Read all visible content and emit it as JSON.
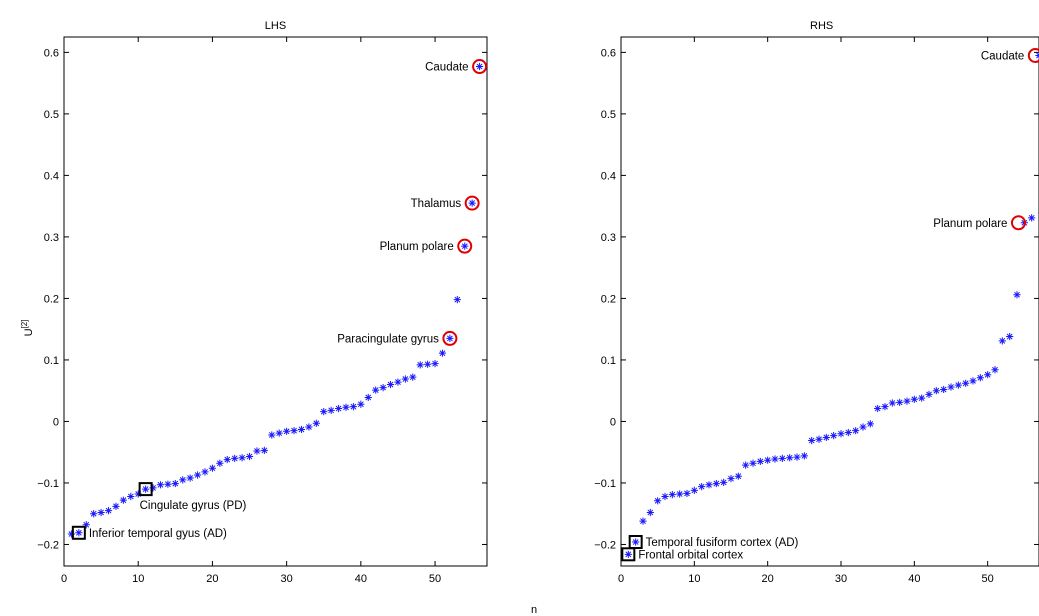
{
  "chart_data": [
    {
      "type": "scatter",
      "title": "LHS",
      "xlabel": "",
      "ylabel": "U",
      "ylabel_sup": "[2]",
      "xlim": [
        0,
        57
      ],
      "ylim": [
        -0.235,
        0.625
      ],
      "xticks": [
        "0",
        "10",
        "20",
        "30",
        "40",
        "50"
      ],
      "yticks": [
        "−0.2",
        "−0.1",
        "0",
        "0.1",
        "0.2",
        "0.3",
        "0.4",
        "0.5",
        "0.6"
      ],
      "xtick_values": [
        0,
        10,
        20,
        30,
        40,
        50
      ],
      "ytick_values": [
        -0.2,
        -0.1,
        0,
        0.1,
        0.2,
        0.3,
        0.4,
        0.5,
        0.6
      ],
      "marker_color": "#1a1aff",
      "points": [
        [
          1,
          -0.183
        ],
        [
          2,
          -0.181
        ],
        [
          3,
          -0.168
        ],
        [
          4,
          -0.15
        ],
        [
          5,
          -0.148
        ],
        [
          6,
          -0.145
        ],
        [
          7,
          -0.138
        ],
        [
          8,
          -0.128
        ],
        [
          9,
          -0.122
        ],
        [
          10,
          -0.118
        ],
        [
          11,
          -0.11
        ],
        [
          12,
          -0.108
        ],
        [
          13,
          -0.103
        ],
        [
          14,
          -0.102
        ],
        [
          15,
          -0.101
        ],
        [
          16,
          -0.095
        ],
        [
          17,
          -0.092
        ],
        [
          18,
          -0.087
        ],
        [
          19,
          -0.082
        ],
        [
          20,
          -0.076
        ],
        [
          21,
          -0.068
        ],
        [
          22,
          -0.062
        ],
        [
          23,
          -0.06
        ],
        [
          24,
          -0.059
        ],
        [
          25,
          -0.057
        ],
        [
          26,
          -0.048
        ],
        [
          27,
          -0.047
        ],
        [
          28,
          -0.022
        ],
        [
          29,
          -0.019
        ],
        [
          30,
          -0.016
        ],
        [
          31,
          -0.015
        ],
        [
          32,
          -0.013
        ],
        [
          33,
          -0.009
        ],
        [
          34,
          -0.003
        ],
        [
          35,
          0.016
        ],
        [
          36,
          0.018
        ],
        [
          37,
          0.021
        ],
        [
          38,
          0.023
        ],
        [
          39,
          0.024
        ],
        [
          40,
          0.028
        ],
        [
          41,
          0.039
        ],
        [
          42,
          0.051
        ],
        [
          43,
          0.055
        ],
        [
          44,
          0.06
        ],
        [
          45,
          0.064
        ],
        [
          46,
          0.069
        ],
        [
          47,
          0.072
        ],
        [
          48,
          0.092
        ],
        [
          49,
          0.093
        ],
        [
          50,
          0.094
        ],
        [
          51,
          0.111
        ],
        [
          52,
          0.135
        ],
        [
          53,
          0.198
        ],
        [
          54,
          0.285
        ],
        [
          55,
          0.355
        ],
        [
          56,
          0.577
        ]
      ],
      "highlighted": [
        {
          "label": "Caudate",
          "x": 56,
          "y": 0.577,
          "shape": "circle",
          "side": "left"
        },
        {
          "label": "Thalamus",
          "x": 55,
          "y": 0.355,
          "shape": "circle",
          "side": "left"
        },
        {
          "label": "Planum polare",
          "x": 54,
          "y": 0.285,
          "shape": "circle",
          "side": "left"
        },
        {
          "label": "Paracingulate gyrus",
          "x": 52,
          "y": 0.135,
          "shape": "circle",
          "side": "left"
        },
        {
          "label": "Cingulate gyrus (PD)",
          "x": 11,
          "y": -0.11,
          "shape": "square",
          "side": "below-right"
        },
        {
          "label": "Inferior temporal gyus (AD)",
          "x": 2,
          "y": -0.181,
          "shape": "square",
          "side": "right"
        }
      ]
    },
    {
      "type": "scatter",
      "title": "RHS",
      "xlabel": "",
      "ylabel": "",
      "xlim": [
        0,
        57
      ],
      "ylim": [
        -0.235,
        0.625
      ],
      "xticks": [
        "0",
        "10",
        "20",
        "30",
        "40",
        "50"
      ],
      "yticks": [
        "−0.2",
        "−0.1",
        "0",
        "0.1",
        "0.2",
        "0.3",
        "0.4",
        "0.5",
        "0.6"
      ],
      "xtick_values": [
        0,
        10,
        20,
        30,
        40,
        50
      ],
      "ytick_values": [
        -0.2,
        -0.1,
        0,
        0.1,
        0.2,
        0.3,
        0.4,
        0.5,
        0.6
      ],
      "marker_color": "#1a1aff",
      "points": [
        [
          1,
          -0.216
        ],
        [
          2,
          -0.196
        ],
        [
          3,
          -0.162
        ],
        [
          4,
          -0.148
        ],
        [
          5,
          -0.129
        ],
        [
          6,
          -0.122
        ],
        [
          7,
          -0.119
        ],
        [
          8,
          -0.118
        ],
        [
          9,
          -0.117
        ],
        [
          10,
          -0.112
        ],
        [
          11,
          -0.106
        ],
        [
          12,
          -0.103
        ],
        [
          13,
          -0.101
        ],
        [
          14,
          -0.099
        ],
        [
          15,
          -0.093
        ],
        [
          16,
          -0.089
        ],
        [
          17,
          -0.071
        ],
        [
          18,
          -0.068
        ],
        [
          19,
          -0.065
        ],
        [
          20,
          -0.063
        ],
        [
          21,
          -0.061
        ],
        [
          22,
          -0.06
        ],
        [
          23,
          -0.059
        ],
        [
          24,
          -0.058
        ],
        [
          25,
          -0.056
        ],
        [
          26,
          -0.031
        ],
        [
          27,
          -0.029
        ],
        [
          28,
          -0.026
        ],
        [
          29,
          -0.023
        ],
        [
          30,
          -0.02
        ],
        [
          31,
          -0.018
        ],
        [
          32,
          -0.015
        ],
        [
          33,
          -0.009
        ],
        [
          34,
          -0.004
        ],
        [
          35,
          0.021
        ],
        [
          36,
          0.024
        ],
        [
          37,
          0.03
        ],
        [
          38,
          0.031
        ],
        [
          39,
          0.033
        ],
        [
          40,
          0.036
        ],
        [
          41,
          0.038
        ],
        [
          42,
          0.044
        ],
        [
          43,
          0.05
        ],
        [
          44,
          0.052
        ],
        [
          45,
          0.056
        ],
        [
          46,
          0.059
        ],
        [
          47,
          0.062
        ],
        [
          48,
          0.066
        ],
        [
          49,
          0.071
        ],
        [
          50,
          0.076
        ],
        [
          51,
          0.084
        ],
        [
          52,
          0.131
        ],
        [
          53,
          0.138
        ],
        [
          54,
          0.206
        ],
        [
          55,
          0.323
        ],
        [
          56,
          0.331
        ],
        [
          57,
          0.595
        ]
      ],
      "highlighted": [
        {
          "label": "Caudate",
          "x": 56.5,
          "y": 0.595,
          "shape": "circle",
          "side": "left"
        },
        {
          "label": "Planum polare",
          "x": 54.2,
          "y": 0.323,
          "shape": "circle",
          "side": "left"
        },
        {
          "label": "Temporal fusiform cortex (AD)",
          "x": 2,
          "y": -0.196,
          "shape": "square",
          "side": "right"
        },
        {
          "label": "Frontal orbital cortex",
          "x": 1,
          "y": -0.216,
          "shape": "square",
          "side": "right"
        }
      ]
    }
  ],
  "shared_xlabel": "n"
}
